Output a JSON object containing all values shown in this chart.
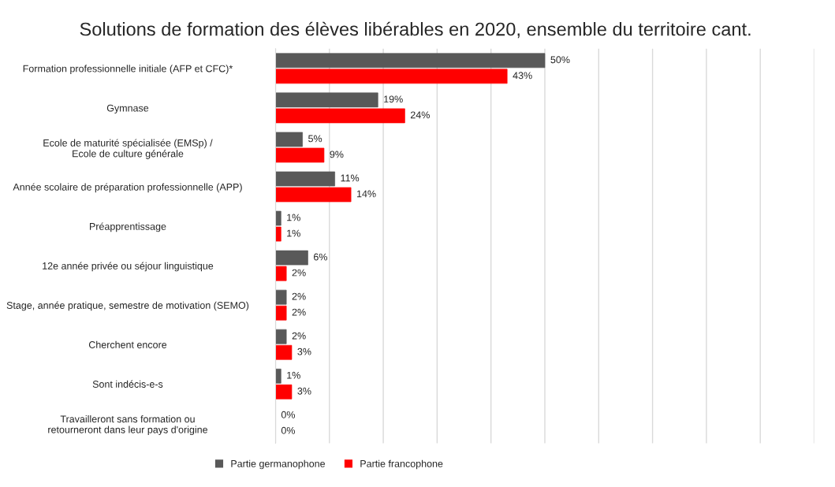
{
  "chart_data": {
    "type": "bar",
    "orientation": "horizontal",
    "title": "Solutions de formation des élèves libérables en 2020, ensemble du territoire cant.",
    "categories": [
      "Formation professionnelle initiale (AFP et CFC)*",
      "Gymnase",
      "Ecole de maturité spécialisée (EMSp) /\nEcole de culture générale",
      "Année scolaire de préparation professionnelle (APP)",
      "Préapprentissage",
      "12e année privée ou séjour linguistique",
      "Stage, année pratique, semestre de motivation (SEMO)",
      "Cherchent encore",
      "Sont indécis-e-s",
      "Travailleront sans formation ou\nretourneront dans leur pays d'origine"
    ],
    "series": [
      {
        "name": "Partie germanophone",
        "color": "#595959",
        "values": [
          50,
          19,
          5,
          11,
          1,
          6,
          2,
          2,
          1,
          0
        ],
        "value_labels": [
          "50%",
          "19%",
          "5%",
          "11%",
          "1%",
          "6%",
          "2%",
          "2%",
          "1%",
          "0%"
        ]
      },
      {
        "name": "Partie francophone",
        "color": "#ff0000",
        "values": [
          43,
          24,
          9,
          14,
          1,
          2,
          2,
          3,
          3,
          0
        ],
        "value_labels": [
          "43%",
          "24%",
          "9%",
          "14%",
          "1%",
          "2%",
          "2%",
          "3%",
          "3%",
          "0%"
        ]
      }
    ],
    "xlim": [
      0,
      100
    ],
    "xticks": [
      {
        "value": 0,
        "label": null
      },
      {
        "value": 10,
        "label": null
      },
      {
        "value": 20,
        "label": null
      },
      {
        "value": 30,
        "label": null
      },
      {
        "value": 40,
        "label": null
      },
      {
        "value": 50,
        "label": null
      },
      {
        "value": 60,
        "label": null
      },
      {
        "value": 70,
        "label": null
      },
      {
        "value": 80,
        "label": null
      },
      {
        "value": 90,
        "label": null
      },
      {
        "value": 100,
        "label": null
      }
    ],
    "grid": "x",
    "legend": "bottom",
    "tick_labels": "y"
  }
}
